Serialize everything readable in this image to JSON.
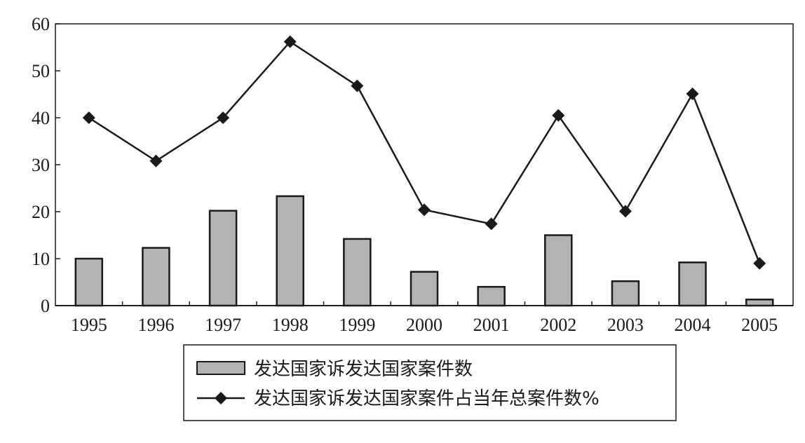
{
  "chart_data": {
    "type": "bar",
    "categories": [
      "1995",
      "1996",
      "1997",
      "1998",
      "1999",
      "2000",
      "2001",
      "2002",
      "2003",
      "2004",
      "2005"
    ],
    "series": [
      {
        "name": "发达国家诉发达国家案件数",
        "type": "bar",
        "values": [
          10,
          12.3,
          20.2,
          23.3,
          14.2,
          7.2,
          4,
          15,
          5.2,
          9.2,
          1.3
        ]
      },
      {
        "name": "发达国家诉发达国家案件占当年总案件数%",
        "type": "line",
        "values": [
          40,
          30.8,
          40,
          56.2,
          46.8,
          20.4,
          17.4,
          40.5,
          20.1,
          45.1,
          9
        ]
      }
    ],
    "ylim": [
      0,
      60
    ],
    "yticks": [
      "0",
      "10",
      "20",
      "30",
      "40",
      "50",
      "60"
    ],
    "grid": false,
    "legend_position": "bottom-center",
    "colors": {
      "bar_fill": "#b3b3b3",
      "bar_stroke": "#1a1a1a",
      "line": "#1a1a1a",
      "marker": "#1a1a1a"
    }
  }
}
